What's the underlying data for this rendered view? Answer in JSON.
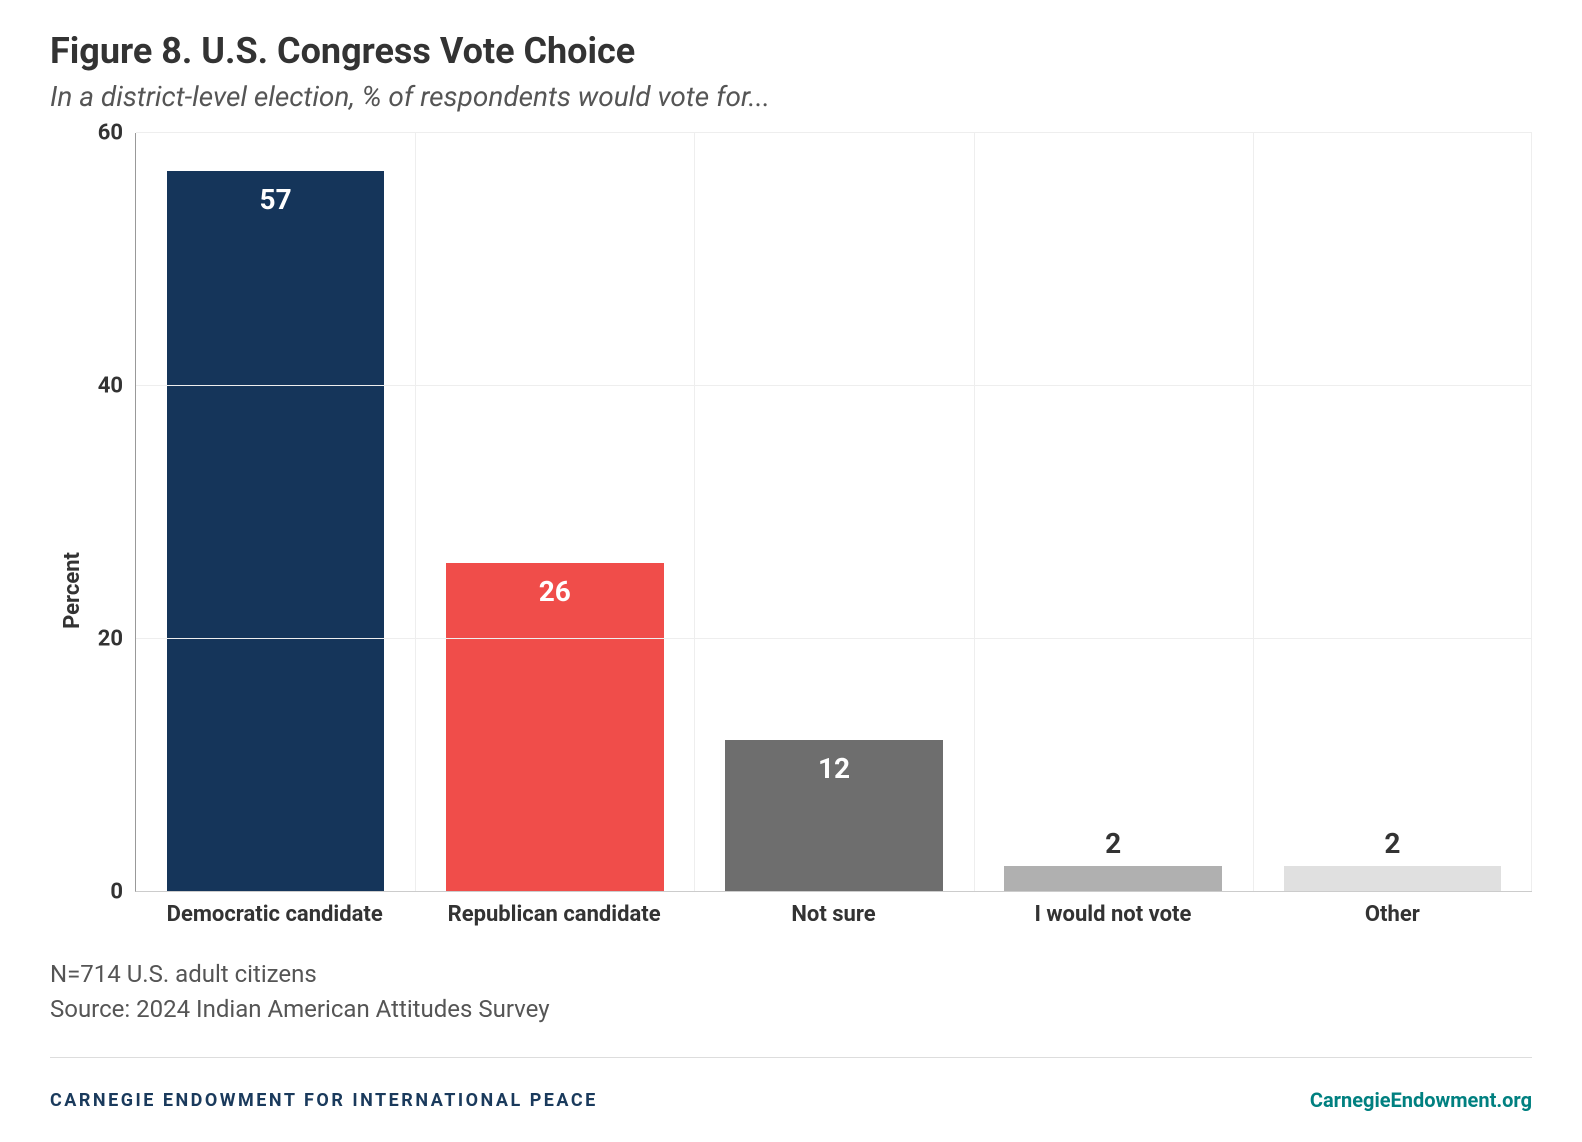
{
  "title": "Figure 8. U.S. Congress Vote Choice",
  "subtitle": "In a district-level election, % of respondents would vote for...",
  "chart": {
    "type": "bar",
    "ylabel": "Percent",
    "ylim": [
      0,
      60
    ],
    "ytick_step": 20,
    "yticks": [
      0,
      20,
      40,
      60
    ],
    "categories": [
      "Democratic candidate",
      "Republican candidate",
      "Not sure",
      "I would not vote",
      "Other"
    ],
    "values": [
      57,
      26,
      12,
      2,
      2
    ],
    "bar_colors": [
      "#15355a",
      "#f04d4a",
      "#6e6e6e",
      "#b0b0b0",
      "#e0e0e0"
    ],
    "value_label_position": [
      "inside",
      "inside",
      "inside",
      "outside",
      "outside"
    ],
    "value_label_color_inside": "#ffffff",
    "value_label_color_outside": "#333333",
    "background_color": "#ffffff",
    "grid_color": "#eeeeee",
    "axis_color": "#999999",
    "bar_width": 0.78,
    "label_fontsize": 22,
    "value_fontsize": 28,
    "title_fontsize": 36,
    "subtitle_fontsize": 28
  },
  "notes": {
    "line1": "N=714 U.S. adult citizens",
    "line2": "Source: 2024 Indian American Attitudes Survey"
  },
  "footer": {
    "org": "CARNEGIE ENDOWMENT FOR INTERNATIONAL PEACE",
    "url": "CarnegieEndowment.org",
    "org_color": "#1a3a5c",
    "url_color": "#008080"
  }
}
